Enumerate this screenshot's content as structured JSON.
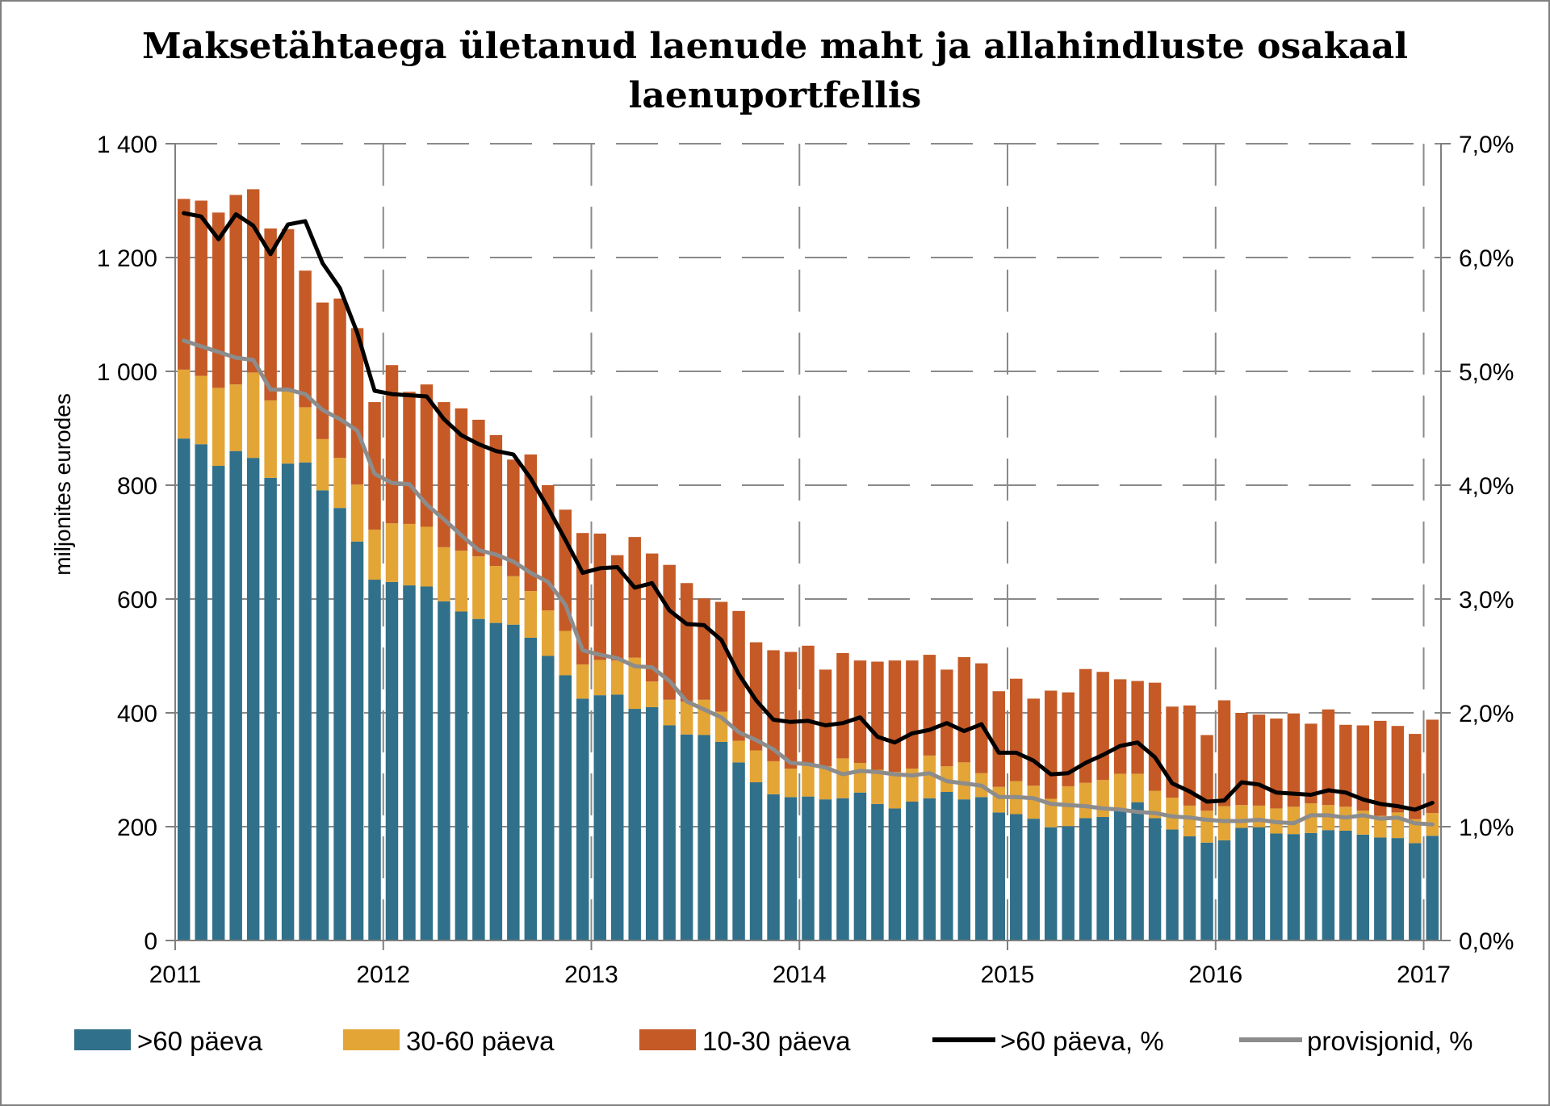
{
  "chart_data": {
    "type": "bar",
    "title_lines": [
      "Maksetähtaega ületanud laenude maht ja allahindluste osakaal",
      "laenuportfellis"
    ],
    "ylabel": "miljonites eurodes",
    "ylim": [
      0,
      1400
    ],
    "y2lim": [
      0,
      7.0
    ],
    "yticks": [
      "0",
      "200",
      "400",
      "600",
      "800",
      "1 000",
      "1 200",
      "1 400"
    ],
    "y2ticks": [
      "0,0%",
      "1,0%",
      "2,0%",
      "3,0%",
      "4,0%",
      "5,0%",
      "6,0%",
      "7,0%"
    ],
    "xticks": [
      "2011",
      "2012",
      "2013",
      "2014",
      "2015",
      "2016",
      "2017"
    ],
    "grid": true,
    "legend_position": "bottom",
    "bar_months": 73,
    "series": [
      {
        "name": ">60 päeva",
        "kind": "bar",
        "color": "#31708a",
        "values": [
          882,
          872,
          834,
          860,
          848,
          813,
          838,
          840,
          791,
          760,
          701,
          634,
          630,
          624,
          622,
          596,
          578,
          565,
          558,
          555,
          532,
          500,
          466,
          425,
          431,
          432,
          407,
          410,
          378,
          362,
          361,
          349,
          313,
          278,
          257,
          252,
          253,
          248,
          250,
          260,
          240,
          232,
          244,
          250,
          261,
          248,
          252,
          225,
          222,
          214,
          199,
          201,
          215,
          217,
          231,
          243,
          215,
          195,
          183,
          172,
          176,
          198,
          199,
          188,
          187,
          189,
          194,
          193,
          186,
          181,
          180,
          171,
          184
        ]
      },
      {
        "name": "30-60 päeva",
        "kind": "bar",
        "color": "#e3a535",
        "values": [
          121,
          120,
          137,
          117,
          150,
          136,
          127,
          97,
          90,
          88,
          100,
          88,
          103,
          108,
          105,
          95,
          107,
          110,
          100,
          85,
          82,
          80,
          78,
          60,
          62,
          60,
          90,
          45,
          45,
          58,
          62,
          53,
          38,
          56,
          58,
          50,
          55,
          58,
          70,
          52,
          60,
          64,
          58,
          75,
          45,
          65,
          42,
          45,
          58,
          58,
          50,
          70,
          62,
          65,
          62,
          50,
          48,
          56,
          54,
          56,
          60,
          40,
          38,
          44,
          48,
          52,
          44,
          42,
          42,
          38,
          45,
          42,
          40
        ]
      },
      {
        "name": "10-30 päeva",
        "kind": "bar",
        "color": "#c55a27",
        "values": [
          300,
          308,
          308,
          333,
          322,
          302,
          285,
          240,
          240,
          280,
          275,
          224,
          278,
          232,
          250,
          255,
          250,
          240,
          230,
          205,
          240,
          220,
          213,
          231,
          222,
          185,
          212,
          225,
          237,
          208,
          178,
          193,
          228,
          190,
          195,
          205,
          210,
          170,
          185,
          180,
          190,
          196,
          190,
          177,
          170,
          185,
          193,
          168,
          180,
          153,
          190,
          165,
          200,
          190,
          166,
          163,
          190,
          160,
          176,
          133,
          186,
          162,
          160,
          158,
          164,
          140,
          168,
          144,
          150,
          167,
          152,
          150,
          164
        ]
      },
      {
        "name": ">60 päeva, %",
        "kind": "line",
        "color": "#000000",
        "values": [
          6.39,
          6.36,
          6.16,
          6.38,
          6.28,
          6.03,
          6.29,
          6.32,
          5.95,
          5.73,
          5.34,
          4.83,
          4.8,
          4.79,
          4.78,
          4.58,
          4.44,
          4.36,
          4.3,
          4.27,
          4.06,
          3.8,
          3.52,
          3.23,
          3.27,
          3.28,
          3.1,
          3.14,
          2.9,
          2.78,
          2.77,
          2.64,
          2.34,
          2.11,
          1.94,
          1.92,
          1.93,
          1.89,
          1.91,
          1.96,
          1.79,
          1.74,
          1.82,
          1.85,
          1.91,
          1.84,
          1.9,
          1.65,
          1.65,
          1.58,
          1.46,
          1.47,
          1.56,
          1.63,
          1.71,
          1.74,
          1.61,
          1.38,
          1.31,
          1.22,
          1.23,
          1.39,
          1.37,
          1.3,
          1.29,
          1.28,
          1.32,
          1.3,
          1.24,
          1.2,
          1.18,
          1.15,
          1.21
        ]
      },
      {
        "name": "provisjonid, %",
        "kind": "line",
        "color": "#8c8c8c",
        "values": [
          5.27,
          5.22,
          5.17,
          5.12,
          5.1,
          4.84,
          4.84,
          4.8,
          4.66,
          4.58,
          4.48,
          4.1,
          4.02,
          4.01,
          3.83,
          3.7,
          3.56,
          3.43,
          3.39,
          3.33,
          3.23,
          3.15,
          2.95,
          2.55,
          2.51,
          2.48,
          2.41,
          2.4,
          2.28,
          2.1,
          2.03,
          1.96,
          1.83,
          1.76,
          1.68,
          1.56,
          1.55,
          1.52,
          1.46,
          1.49,
          1.48,
          1.46,
          1.45,
          1.47,
          1.4,
          1.38,
          1.36,
          1.26,
          1.26,
          1.25,
          1.2,
          1.19,
          1.18,
          1.16,
          1.15,
          1.13,
          1.12,
          1.09,
          1.08,
          1.06,
          1.05,
          1.05,
          1.06,
          1.04,
          1.03,
          1.1,
          1.1,
          1.08,
          1.1,
          1.07,
          1.08,
          1.03,
          1.02
        ]
      }
    ]
  }
}
